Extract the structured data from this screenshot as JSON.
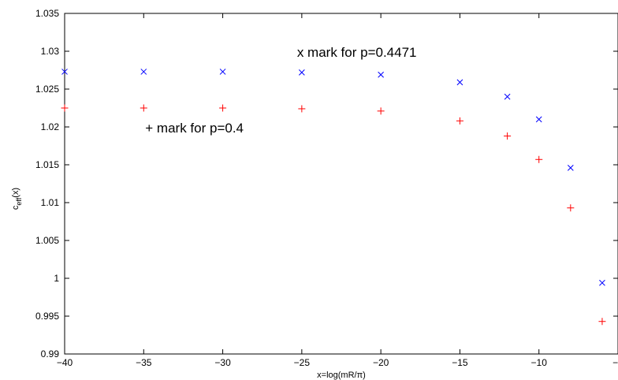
{
  "chart_data": {
    "type": "scatter",
    "title": "",
    "xlabel": "x=log(mR/π)",
    "ylabel_main": "c",
    "ylabel_sub": "eff",
    "ylabel_tail": "(x)",
    "xlim": [
      -40,
      -5
    ],
    "ylim": [
      0.99,
      1.035
    ],
    "xticks": [
      -40,
      -35,
      -30,
      -25,
      -20,
      -15,
      -10,
      -5
    ],
    "xtick_labels": [
      "−40",
      "−35",
      "−30",
      "−25",
      "−20",
      "−15",
      "−10",
      "−5"
    ],
    "yticks": [
      0.99,
      0.995,
      1.0,
      1.005,
      1.01,
      1.015,
      1.02,
      1.025,
      1.03,
      1.035
    ],
    "ytick_labels": [
      "0.99",
      "0.995",
      "1",
      "1.005",
      "1.01",
      "1.015",
      "1.02",
      "1.025",
      "1.03",
      "1.035"
    ],
    "grid": false,
    "annotations": [
      {
        "text": "x mark for p=0.4471",
        "x": -25.3,
        "y": 1.0299
      },
      {
        "text": "+ mark for p=0.4",
        "x": -34.9,
        "y": 1.0199
      }
    ],
    "series": [
      {
        "marker": "x",
        "color": "#0000ff",
        "x": [
          -40,
          -35,
          -30,
          -25,
          -20,
          -15,
          -12,
          -10,
          -8,
          -6
        ],
        "y": [
          1.0273,
          1.0273,
          1.0273,
          1.0272,
          1.0269,
          1.0259,
          1.024,
          1.021,
          1.0146,
          0.9994
        ]
      },
      {
        "marker": "+",
        "color": "#ff0000",
        "x": [
          -40,
          -35,
          -30,
          -25,
          -20,
          -15,
          -12,
          -10,
          -8,
          -6
        ],
        "y": [
          1.0225,
          1.0225,
          1.0225,
          1.0224,
          1.0221,
          1.0208,
          1.0188,
          1.0157,
          1.0093,
          0.9943
        ]
      }
    ]
  }
}
